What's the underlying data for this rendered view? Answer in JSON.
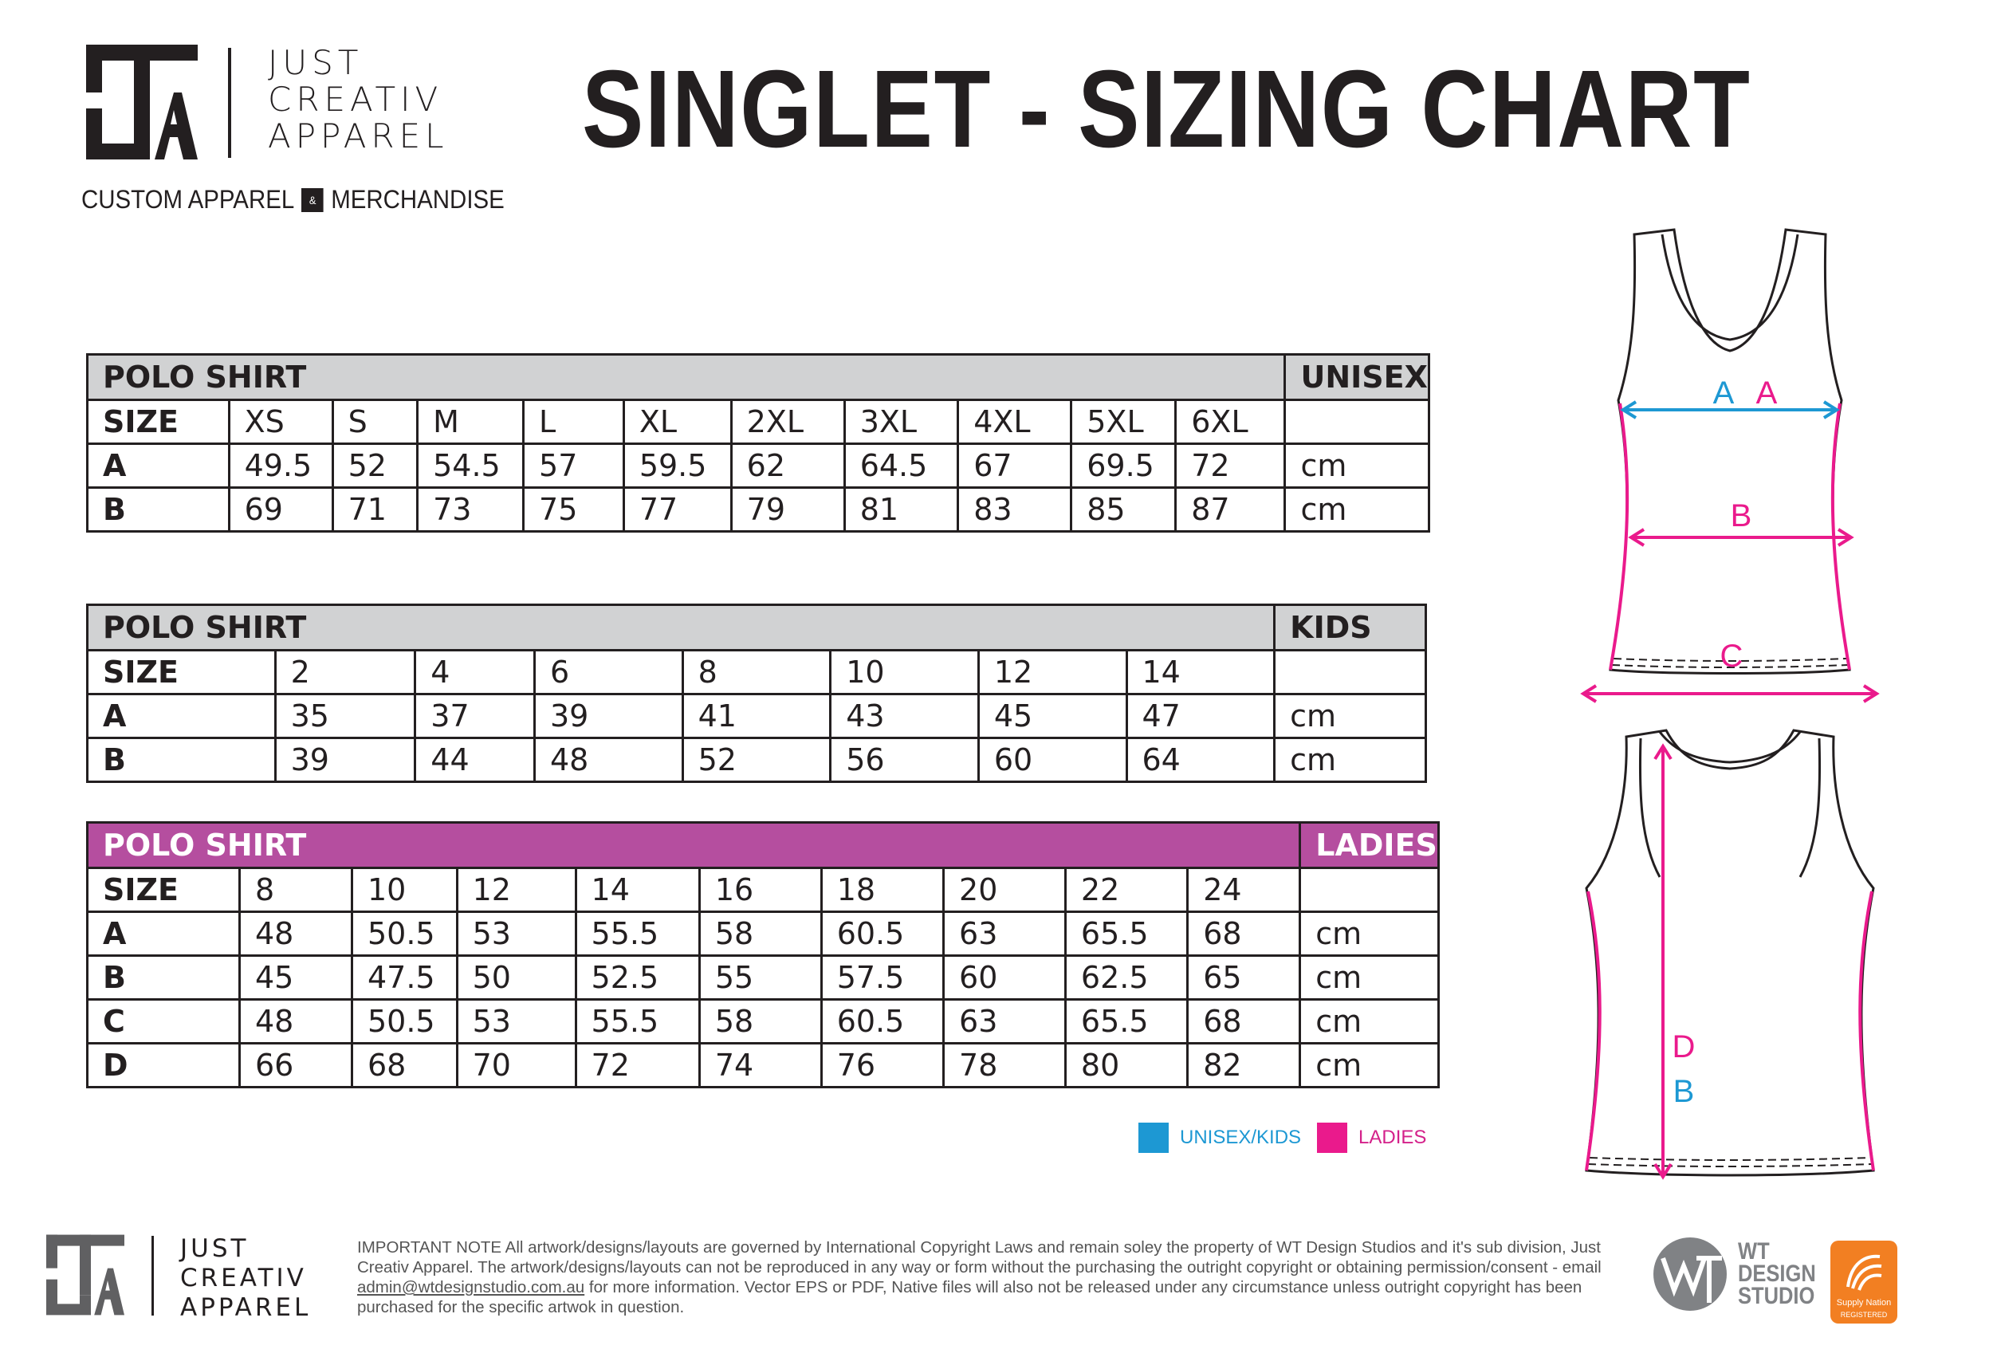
{
  "brand": {
    "lines": [
      "JUST",
      "CREATIV",
      "APPAREL"
    ],
    "tagline_left": "CUSTOM APPAREL",
    "tagline_amp": "&",
    "tagline_right": "MERCHANDISE"
  },
  "page_title": "SINGLET - SIZING CHART",
  "tables": {
    "unisex": {
      "title": "POLO SHIRT",
      "category": "UNISEX",
      "size_label": "SIZE",
      "sizes": [
        "XS",
        "S",
        "M",
        "L",
        "XL",
        "2XL",
        "3XL",
        "4XL",
        "5XL",
        "6XL"
      ],
      "rows": [
        {
          "label": "A",
          "values": [
            "49.5",
            "52",
            "54.5",
            "57",
            "59.5",
            "62",
            "64.5",
            "67",
            "69.5",
            "72"
          ],
          "unit": "cm"
        },
        {
          "label": "B",
          "values": [
            "69",
            "71",
            "73",
            "75",
            "77",
            "79",
            "81",
            "83",
            "85",
            "87"
          ],
          "unit": "cm"
        }
      ]
    },
    "kids": {
      "title": "POLO SHIRT",
      "category": "KIDS",
      "size_label": "SIZE",
      "sizes": [
        "2",
        "4",
        "6",
        "8",
        "10",
        "12",
        "14"
      ],
      "rows": [
        {
          "label": "A",
          "values": [
            "35",
            "37",
            "39",
            "41",
            "43",
            "45",
            "47"
          ],
          "unit": "cm"
        },
        {
          "label": "B",
          "values": [
            "39",
            "44",
            "48",
            "52",
            "56",
            "60",
            "64"
          ],
          "unit": "cm"
        }
      ]
    },
    "ladies": {
      "title": "POLO SHIRT",
      "category": "LADIES",
      "size_label": "SIZE",
      "sizes": [
        "8",
        "10",
        "12",
        "14",
        "16",
        "18",
        "20",
        "22",
        "24"
      ],
      "rows": [
        {
          "label": "A",
          "values": [
            "48",
            "50.5",
            "53",
            "55.5",
            "58",
            "60.5",
            "63",
            "65.5",
            "68"
          ],
          "unit": "cm"
        },
        {
          "label": "B",
          "values": [
            "45",
            "47.5",
            "50",
            "52.5",
            "55",
            "57.5",
            "60",
            "62.5",
            "65"
          ],
          "unit": "cm"
        },
        {
          "label": "C",
          "values": [
            "48",
            "50.5",
            "53",
            "55.5",
            "58",
            "60.5",
            "63",
            "65.5",
            "68"
          ],
          "unit": "cm"
        },
        {
          "label": "D",
          "values": [
            "66",
            "68",
            "70",
            "72",
            "74",
            "76",
            "78",
            "80",
            "82"
          ],
          "unit": "cm"
        }
      ]
    }
  },
  "diagram_labels": {
    "front_a_unisex": "A",
    "front_a_ladies": "A",
    "front_b": "B",
    "front_c": "C",
    "back_d": "D",
    "back_b": "B"
  },
  "legend": {
    "unisex_kids": "UNISEX/KIDS",
    "ladies": "LADIES"
  },
  "colors": {
    "unisex_kids": "#1d98d3",
    "ladies": "#d4218a",
    "ladies_header": "#b54e9f",
    "header_grey": "#d1d2d3",
    "supply_nation": "#f27f22"
  },
  "footer": {
    "brand_lines": [
      "JUST",
      "CREATIV",
      "APPAREL"
    ],
    "note_before_email": "IMPORTANT NOTE All artwork/designs/layouts are governed by International Copyright Laws and remain soley the property of WT Design Studios and it's sub division, Just Creativ Apparel. The artwork/designs/layouts can not be reproduced in any way or form without the purchasing the outright copyright or obtaining permission/consent - email ",
    "note_email": "admin@wtdesignstudio.com.au",
    "note_after_email": " for more information. Vector EPS or PDF, Native files will also not be released under any circumstance unless outright copyright has been purchased for the specific artwok in question.",
    "studio_lines": [
      "WT",
      "DESIGN",
      "STUDIO"
    ],
    "badge_name": "Supply Nation",
    "badge_status": "REGISTERED"
  }
}
